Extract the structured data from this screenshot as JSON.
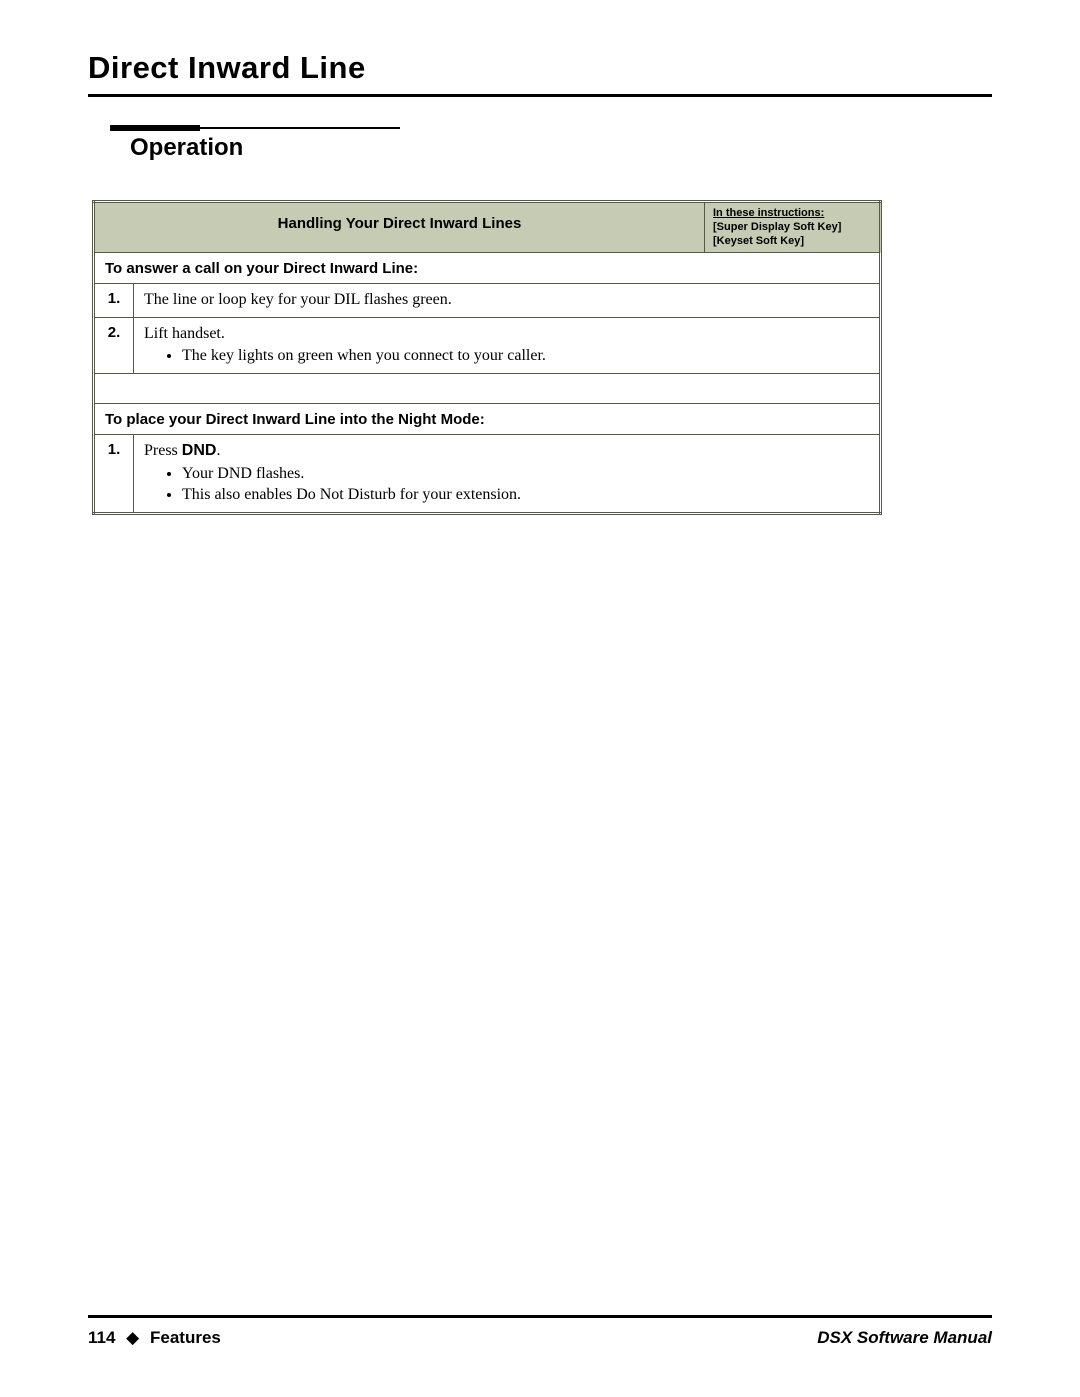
{
  "page": {
    "title": "Direct Inward Line",
    "section_heading": "Operation"
  },
  "table": {
    "header_main": "Handling Your Direct Inward Lines",
    "header_side": {
      "line1": "In these instructions:",
      "line2": "[Super Display Soft Key]",
      "line3": "[Keyset Soft Key]"
    },
    "sections": [
      {
        "subhead": "To answer a call on your Direct Inward Line:",
        "steps": [
          {
            "num": "1.",
            "text": "The line or loop key for your DIL flashes green.",
            "bullets": []
          },
          {
            "num": "2.",
            "text": "Lift handset.",
            "bullets": [
              "The key lights on green when you connect to your caller."
            ]
          }
        ]
      },
      {
        "subhead": "To place your Direct Inward Line into the Night Mode:",
        "steps": [
          {
            "num": "1.",
            "text_prefix": "Press ",
            "text_bold": "DND",
            "text_suffix": ".",
            "bullets": [
              "Your DND flashes.",
              "This also enables Do Not Disturb for your extension."
            ]
          }
        ]
      }
    ]
  },
  "footer": {
    "page_num": "114",
    "diamond": "◆",
    "section": "Features",
    "manual": "DSX Software Manual"
  },
  "colors": {
    "header_bg": "#c6cbb3",
    "border": "#555a48",
    "text": "#000000",
    "background": "#ffffff"
  }
}
